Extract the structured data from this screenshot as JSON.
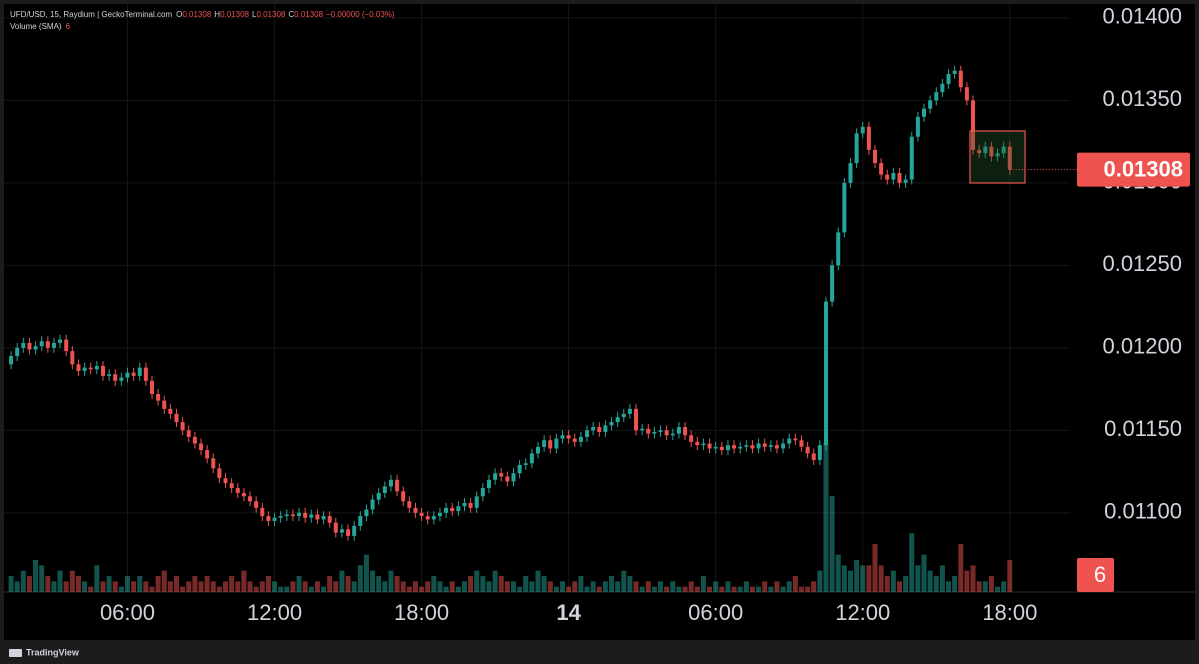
{
  "chart_data": {
    "type": "candlestick",
    "title": "UFD/USD, 15, Raydium | GeckoTerminal.com",
    "ohlc_legend": [
      {
        "label": "O",
        "value": 0.01308
      },
      {
        "label": "H",
        "value": 0.01308
      },
      {
        "label": "L",
        "value": 0.01308
      },
      {
        "label": "C",
        "value": 0.01308
      }
    ],
    "change": "−0.00000 (−0.03%)",
    "volume_title": "Volume (SMA)",
    "footer": "TradingView",
    "up_color": "#26a69a",
    "down_color": "#ef5350",
    "grid": true,
    "xlim": [
      -0.5,
      172.5
    ],
    "xticks": [
      {
        "value": 19,
        "label": "06:00"
      },
      {
        "value": 43,
        "label": "12:00"
      },
      {
        "value": 67,
        "label": "18:00"
      },
      {
        "value": 91,
        "label": "14"
      },
      {
        "value": 115,
        "label": "06:00"
      },
      {
        "value": 139,
        "label": "12:00"
      },
      {
        "value": 163,
        "label": "18:00"
      }
    ],
    "ylim": [
      0.01052,
      0.01406
    ],
    "yticks": [
      {
        "value": 0.011,
        "label": "0.01100"
      },
      {
        "value": 0.0115,
        "label": "0.01150"
      },
      {
        "value": 0.012,
        "label": "0.01200"
      },
      {
        "value": 0.0125,
        "label": "0.01250"
      },
      {
        "value": 0.013,
        "label": "0.01300"
      },
      {
        "value": 0.0135,
        "label": "0.01350"
      },
      {
        "value": 0.014,
        "label": "0.01400"
      }
    ],
    "volume_lim": [
      0,
      30
    ],
    "open": [
      0.0119,
      0.01195,
      0.012,
      0.01203,
      0.01199,
      0.01201,
      0.01204,
      0.012,
      0.01203,
      0.01205,
      0.01198,
      0.0119,
      0.01186,
      0.01188,
      0.01187,
      0.01189,
      0.01183,
      0.01184,
      0.0118,
      0.01182,
      0.01185,
      0.01183,
      0.01188,
      0.0118,
      0.01172,
      0.01168,
      0.01163,
      0.0116,
      0.01155,
      0.0115,
      0.01146,
      0.01142,
      0.01138,
      0.01133,
      0.01127,
      0.01121,
      0.01118,
      0.01115,
      0.01112,
      0.0111,
      0.01107,
      0.01103,
      0.01098,
      0.01095,
      0.01097,
      0.01098,
      0.01099,
      0.01098,
      0.011,
      0.01097,
      0.01099,
      0.01096,
      0.01098,
      0.01094,
      0.01088,
      0.0109,
      0.01086,
      0.01092,
      0.01098,
      0.01102,
      0.01108,
      0.01112,
      0.01116,
      0.0112,
      0.01113,
      0.01107,
      0.01103,
      0.011,
      0.01098,
      0.01096,
      0.01098,
      0.011,
      0.01103,
      0.01101,
      0.01104,
      0.01106,
      0.01103,
      0.0111,
      0.01115,
      0.0112,
      0.01124,
      0.01122,
      0.01119,
      0.01124,
      0.01129,
      0.0113,
      0.01136,
      0.0114,
      0.01144,
      0.01139,
      0.01145,
      0.01147,
      0.01145,
      0.01143,
      0.01146,
      0.0115,
      0.01152,
      0.01149,
      0.01153,
      0.01155,
      0.01158,
      0.0116,
      0.01163,
      0.0115,
      0.01151,
      0.01148,
      0.01149,
      0.0115,
      0.01147,
      0.01148,
      0.01152,
      0.01147,
      0.01143,
      0.01141,
      0.01142,
      0.01139,
      0.0114,
      0.01138,
      0.01141,
      0.01139,
      0.0114,
      0.01141,
      0.01139,
      0.01142,
      0.0114,
      0.01141,
      0.01139,
      0.01142,
      0.01145,
      0.01144,
      0.0114,
      0.01136,
      0.01132,
      0.01141,
      0.01228,
      0.0125,
      0.0127,
      0.013,
      0.01312,
      0.0133,
      0.01334,
      0.0132,
      0.01312,
      0.01305,
      0.01302,
      0.01306,
      0.013,
      0.01302,
      0.01328,
      0.0134,
      0.01345,
      0.0135,
      0.01355,
      0.0136,
      0.01366,
      0.01368,
      0.01358,
      0.0135,
      0.0132,
      0.01318,
      0.01322,
      0.01316,
      0.01318,
      0.01322
    ],
    "high": [
      0.01198,
      0.01203,
      0.01206,
      0.01206,
      0.01204,
      0.01207,
      0.01207,
      0.01206,
      0.01208,
      0.01208,
      0.01201,
      0.01193,
      0.01191,
      0.01191,
      0.01192,
      0.01192,
      0.01187,
      0.01187,
      0.01185,
      0.01188,
      0.01188,
      0.01191,
      0.01191,
      0.01183,
      0.01175,
      0.01171,
      0.01166,
      0.01163,
      0.01158,
      0.01153,
      0.01149,
      0.01145,
      0.01141,
      0.01136,
      0.0113,
      0.01124,
      0.01121,
      0.01118,
      0.01115,
      0.01113,
      0.0111,
      0.01106,
      0.01101,
      0.011,
      0.01101,
      0.01102,
      0.01102,
      0.01103,
      0.01103,
      0.01102,
      0.01102,
      0.01101,
      0.01101,
      0.01097,
      0.01093,
      0.01093,
      0.01095,
      0.01101,
      0.01105,
      0.01111,
      0.01115,
      0.01119,
      0.01123,
      0.01123,
      0.01116,
      0.0111,
      0.01106,
      0.01103,
      0.01101,
      0.01101,
      0.01103,
      0.01106,
      0.01106,
      0.01107,
      0.01109,
      0.01109,
      0.01113,
      0.01118,
      0.01123,
      0.01127,
      0.01127,
      0.01125,
      0.01127,
      0.01132,
      0.01133,
      0.01139,
      0.01143,
      0.01147,
      0.01147,
      0.01148,
      0.0115,
      0.0115,
      0.01148,
      0.01149,
      0.01153,
      0.01155,
      0.01155,
      0.01156,
      0.01158,
      0.01161,
      0.01163,
      0.01166,
      0.01166,
      0.01154,
      0.01154,
      0.01152,
      0.01153,
      0.01153,
      0.01151,
      0.01155,
      0.01155,
      0.0115,
      0.01146,
      0.01145,
      0.01145,
      0.01143,
      0.01143,
      0.01144,
      0.01144,
      0.01143,
      0.01144,
      0.01144,
      0.01145,
      0.01145,
      0.01144,
      0.01144,
      0.01145,
      0.01148,
      0.01148,
      0.01147,
      0.01143,
      0.01139,
      0.01144,
      0.01231,
      0.01253,
      0.01273,
      0.01303,
      0.01315,
      0.01333,
      0.01337,
      0.01337,
      0.01323,
      0.01315,
      0.01308,
      0.01309,
      0.01309,
      0.01305,
      0.01331,
      0.01343,
      0.01348,
      0.01353,
      0.01358,
      0.01363,
      0.01369,
      0.01371,
      0.01371,
      0.01361,
      0.01353,
      0.01323,
      0.01325,
      0.01325,
      0.01321,
      0.01325,
      0.01325
    ],
    "low": [
      0.01187,
      0.01192,
      0.01197,
      0.01196,
      0.01196,
      0.01198,
      0.01197,
      0.01197,
      0.012,
      0.01195,
      0.01187,
      0.01183,
      0.01183,
      0.01184,
      0.01184,
      0.0118,
      0.0118,
      0.01177,
      0.01177,
      0.01179,
      0.0118,
      0.0118,
      0.01177,
      0.01169,
      0.01165,
      0.0116,
      0.01157,
      0.01152,
      0.01147,
      0.01143,
      0.01139,
      0.01135,
      0.0113,
      0.01124,
      0.01118,
      0.01115,
      0.01112,
      0.01109,
      0.01107,
      0.01104,
      0.011,
      0.01095,
      0.01092,
      0.01092,
      0.01094,
      0.01095,
      0.01095,
      0.01095,
      0.01094,
      0.01094,
      0.01093,
      0.01093,
      0.01091,
      0.01085,
      0.01085,
      0.01083,
      0.01083,
      0.01089,
      0.01095,
      0.01099,
      0.01105,
      0.01109,
      0.01113,
      0.0111,
      0.01104,
      0.011,
      0.01097,
      0.01095,
      0.01093,
      0.01093,
      0.01095,
      0.01097,
      0.01098,
      0.01098,
      0.01101,
      0.011,
      0.011,
      0.01107,
      0.01112,
      0.01117,
      0.01119,
      0.01116,
      0.01116,
      0.01121,
      0.01126,
      0.01127,
      0.01133,
      0.01137,
      0.01136,
      0.01136,
      0.01142,
      0.01142,
      0.0114,
      0.0114,
      0.01143,
      0.01147,
      0.01146,
      0.01146,
      0.0115,
      0.01152,
      0.01155,
      0.01157,
      0.01147,
      0.01147,
      0.01145,
      0.01145,
      0.01146,
      0.01144,
      0.01144,
      0.01145,
      0.01144,
      0.0114,
      0.01138,
      0.01138,
      0.01136,
      0.01136,
      0.01135,
      0.01135,
      0.01136,
      0.01136,
      0.01137,
      0.01136,
      0.01136,
      0.01137,
      0.01137,
      0.01136,
      0.01136,
      0.01139,
      0.01141,
      0.01137,
      0.01133,
      0.01129,
      0.01129,
      0.01138,
      0.01225,
      0.01247,
      0.01267,
      0.01297,
      0.01309,
      0.01327,
      0.01317,
      0.01309,
      0.01302,
      0.01299,
      0.01299,
      0.01297,
      0.01297,
      0.01299,
      0.01325,
      0.01337,
      0.01342,
      0.01347,
      0.01352,
      0.01357,
      0.01363,
      0.01355,
      0.01347,
      0.01317,
      0.01315,
      0.01315,
      0.01313,
      0.01313,
      0.01315,
      0.01305
    ],
    "close": [
      0.01195,
      0.012,
      0.01203,
      0.01199,
      0.01201,
      0.01204,
      0.012,
      0.01203,
      0.01205,
      0.01198,
      0.0119,
      0.01186,
      0.01188,
      0.01187,
      0.01189,
      0.01183,
      0.01184,
      0.0118,
      0.01182,
      0.01185,
      0.01183,
      0.01188,
      0.0118,
      0.01172,
      0.01168,
      0.01163,
      0.0116,
      0.01155,
      0.0115,
      0.01146,
      0.01142,
      0.01138,
      0.01133,
      0.01127,
      0.01121,
      0.01118,
      0.01115,
      0.01112,
      0.0111,
      0.01107,
      0.01103,
      0.01098,
      0.01095,
      0.01097,
      0.01098,
      0.01099,
      0.01098,
      0.011,
      0.01097,
      0.01099,
      0.01096,
      0.01098,
      0.01094,
      0.01088,
      0.0109,
      0.01086,
      0.01092,
      0.01098,
      0.01102,
      0.01108,
      0.01112,
      0.01116,
      0.0112,
      0.01113,
      0.01107,
      0.01103,
      0.011,
      0.01098,
      0.01096,
      0.01098,
      0.011,
      0.01103,
      0.01101,
      0.01104,
      0.01106,
      0.01103,
      0.0111,
      0.01115,
      0.0112,
      0.01124,
      0.01122,
      0.01119,
      0.01124,
      0.01129,
      0.0113,
      0.01136,
      0.0114,
      0.01144,
      0.01139,
      0.01145,
      0.01147,
      0.01145,
      0.01143,
      0.01146,
      0.0115,
      0.01152,
      0.01149,
      0.01153,
      0.01155,
      0.01158,
      0.0116,
      0.01163,
      0.0115,
      0.01151,
      0.01148,
      0.01149,
      0.0115,
      0.01147,
      0.01148,
      0.01152,
      0.01147,
      0.01143,
      0.01141,
      0.01142,
      0.01139,
      0.0114,
      0.01138,
      0.01141,
      0.01139,
      0.0114,
      0.01141,
      0.01139,
      0.01142,
      0.0114,
      0.01141,
      0.01139,
      0.01142,
      0.01145,
      0.01144,
      0.0114,
      0.01136,
      0.01132,
      0.01141,
      0.01228,
      0.0125,
      0.0127,
      0.013,
      0.01312,
      0.0133,
      0.01334,
      0.0132,
      0.01312,
      0.01305,
      0.01302,
      0.01306,
      0.013,
      0.01302,
      0.01328,
      0.0134,
      0.01345,
      0.0135,
      0.01355,
      0.0136,
      0.01366,
      0.01368,
      0.01358,
      0.0135,
      0.0132,
      0.01318,
      0.01322,
      0.01316,
      0.01318,
      0.01322,
      0.01308
    ],
    "volume": [
      3,
      2,
      4,
      3,
      6,
      5,
      3,
      2,
      4,
      2,
      4,
      3,
      2,
      1,
      5,
      2,
      3,
      2,
      1,
      3,
      2,
      3,
      2,
      1,
      3,
      4,
      2,
      3,
      1,
      2,
      3,
      2,
      3,
      2,
      1,
      2,
      3,
      2,
      4,
      2,
      1,
      2,
      3,
      2,
      1,
      1,
      2,
      3,
      2,
      1,
      2,
      1,
      3,
      2,
      4,
      3,
      2,
      5,
      7,
      4,
      3,
      2,
      4,
      3,
      2,
      1,
      2,
      1,
      2,
      3,
      2,
      1,
      2,
      1,
      2,
      3,
      4,
      3,
      2,
      4,
      3,
      2,
      2,
      1,
      3,
      2,
      4,
      3,
      2,
      1,
      2,
      1,
      2,
      3,
      1,
      2,
      1,
      2,
      3,
      2,
      4,
      3,
      2,
      1,
      2,
      1,
      2,
      1,
      2,
      1,
      1,
      2,
      1,
      3,
      1,
      2,
      1,
      2,
      1,
      1,
      2,
      1,
      1,
      2,
      1,
      2,
      1,
      2,
      3,
      1,
      1,
      2,
      4,
      28,
      18,
      7,
      5,
      4,
      6,
      5,
      5,
      9,
      5,
      3,
      4,
      2,
      3,
      11,
      5,
      7,
      4,
      3,
      5,
      2,
      3,
      9,
      4,
      5,
      2,
      2,
      3,
      1,
      2,
      6
    ]
  }
}
